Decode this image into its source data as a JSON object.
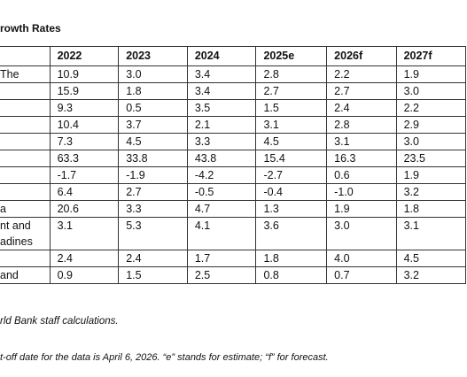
{
  "title": "rowth Rates",
  "table": {
    "header": [
      "2022",
      "2023",
      "2024",
      "2025e",
      "2026f",
      "2027f"
    ],
    "rows": [
      {
        "label": "The",
        "values": [
          "10.9",
          "3.0",
          "3.4",
          "2.8",
          "2.2",
          "1.9"
        ]
      },
      {
        "values": [
          "15.9",
          "1.8",
          "3.4",
          "2.7",
          "2.7",
          "3.0"
        ]
      },
      {
        "values": [
          "9.3",
          "0.5",
          "3.5",
          "1.5",
          "2.4",
          "2.2"
        ]
      },
      {
        "values": [
          "10.4",
          "3.7",
          "2.1",
          "3.1",
          "2.8",
          "2.9"
        ]
      },
      {
        "values": [
          "7.3",
          "4.5",
          "3.3",
          "4.5",
          "3.1",
          "3.0"
        ]
      },
      {
        "values": [
          "63.3",
          "33.8",
          "43.8",
          "15.4",
          "16.3",
          "23.5"
        ]
      },
      {
        "values": [
          "-1.7",
          "-1.9",
          "-4.2",
          "-2.7",
          "0.6",
          "1.9"
        ]
      },
      {
        "values": [
          "6.4",
          "2.7",
          "-0.5",
          "-0.4",
          "-1.0",
          "3.2"
        ]
      },
      {
        "label": "a",
        "values": [
          "20.6",
          "3.3",
          "4.7",
          "1.3",
          "1.9",
          "1.8"
        ]
      },
      {
        "label": [
          "nt and",
          "adines"
        ],
        "values": [
          "3.1",
          "5.3",
          "4.1",
          "3.6",
          "3.0",
          "3.1"
        ]
      },
      {
        "values": [
          "2.4",
          "2.4",
          "1.7",
          "1.8",
          "4.0",
          "4.5"
        ]
      },
      {
        "label": "and",
        "values": [
          "0.9",
          "1.5",
          "2.5",
          "0.8",
          "0.7",
          "3.2"
        ]
      }
    ]
  },
  "notes": [
    "rld Bank staff calculations.",
    "t-off date for the data is April 6, 2026. “e” stands for estimate; “f” for forecast."
  ]
}
